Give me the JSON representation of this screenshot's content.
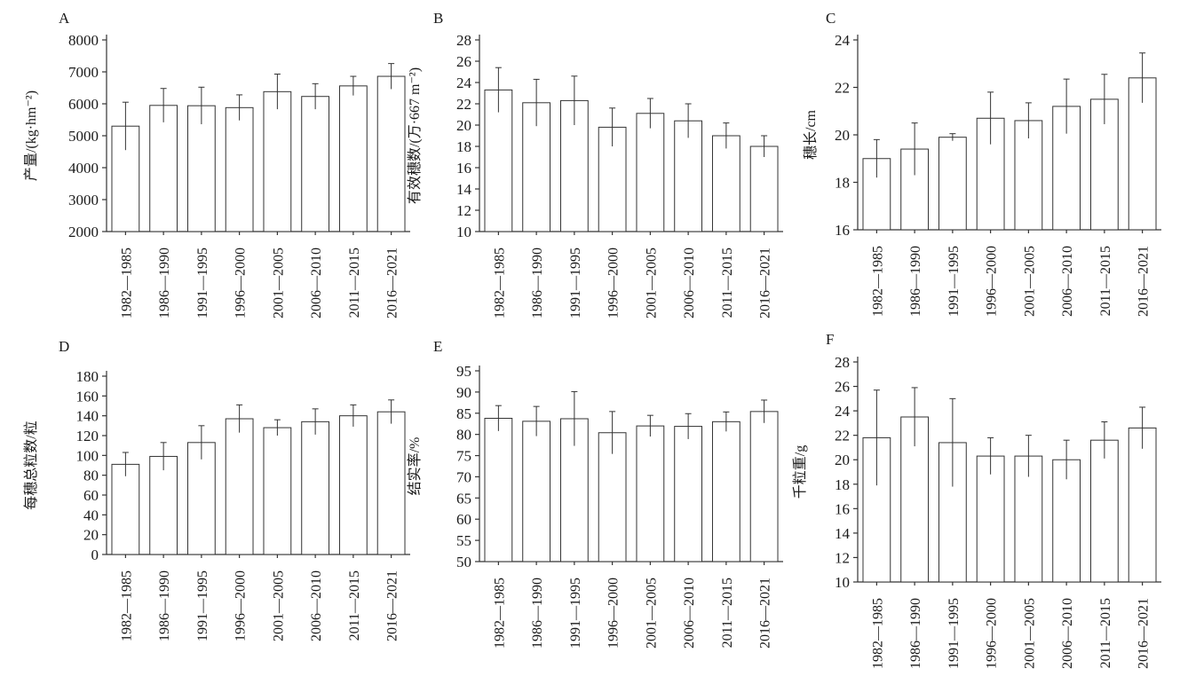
{
  "chart_data": [
    {
      "panel": "A",
      "type": "bar",
      "ylabel": "产量/(kg·hm⁻²)",
      "categories": [
        "1982—1985",
        "1986—1990",
        "1991—1995",
        "1996—2000",
        "2001—2005",
        "2006—2010",
        "2011—2015",
        "2016—2021"
      ],
      "values": [
        5300,
        5950,
        5940,
        5880,
        6380,
        6230,
        6560,
        6860
      ],
      "errors": [
        750,
        530,
        580,
        400,
        550,
        400,
        300,
        400
      ],
      "ylim": [
        2000,
        8000
      ],
      "yticks": [
        2000,
        3000,
        4000,
        5000,
        6000,
        7000,
        8000
      ]
    },
    {
      "panel": "B",
      "type": "bar",
      "ylabel": "有效穗数/(万·667 m⁻²)",
      "categories": [
        "1982—1985",
        "1986—1990",
        "1991—1995",
        "1996—2000",
        "2001—2005",
        "2006—2010",
        "2011—2015",
        "2016—2021"
      ],
      "values": [
        23.3,
        22.1,
        22.3,
        19.8,
        21.1,
        20.4,
        19.0,
        18.0
      ],
      "errors": [
        2.1,
        2.2,
        2.3,
        1.8,
        1.4,
        1.6,
        1.2,
        1.0
      ],
      "ylim": [
        10,
        28
      ],
      "yticks": [
        10,
        12,
        14,
        16,
        18,
        20,
        22,
        24,
        26,
        28
      ]
    },
    {
      "panel": "C",
      "type": "bar",
      "ylabel": "穗长/cm",
      "categories": [
        "1982—1985",
        "1986—1990",
        "1991—1995",
        "1996—2000",
        "2001—2005",
        "2006—2010",
        "2011—2015",
        "2016—2021"
      ],
      "values": [
        19.0,
        19.4,
        19.9,
        20.7,
        20.6,
        21.2,
        21.5,
        22.4
      ],
      "errors": [
        0.8,
        1.1,
        0.15,
        1.1,
        0.75,
        1.15,
        1.05,
        1.05
      ],
      "ylim": [
        16,
        24
      ],
      "yticks": [
        16,
        18,
        20,
        22,
        24
      ]
    },
    {
      "panel": "D",
      "type": "bar",
      "ylabel": "每穗总粒数/粒",
      "categories": [
        "1982—1985",
        "1986—1990",
        "1991—1995",
        "1996—2000",
        "2001—2005",
        "2006—2010",
        "2011—2015",
        "2016—2021"
      ],
      "values": [
        91,
        99,
        113,
        137,
        128,
        134,
        140,
        144
      ],
      "errors": [
        12,
        14,
        17,
        14,
        8,
        13,
        11,
        12
      ],
      "ylim": [
        0,
        180
      ],
      "yticks": [
        0,
        20,
        40,
        60,
        80,
        100,
        120,
        140,
        160,
        180
      ]
    },
    {
      "panel": "E",
      "type": "bar",
      "ylabel": "结实率/%",
      "categories": [
        "1982—1985",
        "1986—1990",
        "1991—1995",
        "1996—2000",
        "2001—2005",
        "2006—2010",
        "2011—2015",
        "2016—2021"
      ],
      "values": [
        83.8,
        83.1,
        83.7,
        80.4,
        82.0,
        81.9,
        83.0,
        85.4
      ],
      "errors": [
        3.0,
        3.5,
        6.4,
        5.0,
        2.5,
        3.0,
        2.3,
        2.7
      ],
      "ylim": [
        50,
        95
      ],
      "yticks": [
        50,
        55,
        60,
        65,
        70,
        75,
        80,
        85,
        90,
        95
      ]
    },
    {
      "panel": "F",
      "type": "bar",
      "ylabel": "千粒重/g",
      "categories": [
        "1982—1985",
        "1986—1990",
        "1991—1995",
        "1996—2000",
        "2001—2005",
        "2006—2010",
        "2011—2015",
        "2016—2021"
      ],
      "values": [
        21.8,
        23.5,
        21.4,
        20.3,
        20.3,
        20.0,
        21.6,
        22.6
      ],
      "errors": [
        3.9,
        2.4,
        3.6,
        1.5,
        1.7,
        1.6,
        1.5,
        1.7
      ],
      "ylim": [
        10,
        28
      ],
      "yticks": [
        10,
        12,
        14,
        16,
        18,
        20,
        22,
        24,
        26,
        28
      ]
    }
  ]
}
